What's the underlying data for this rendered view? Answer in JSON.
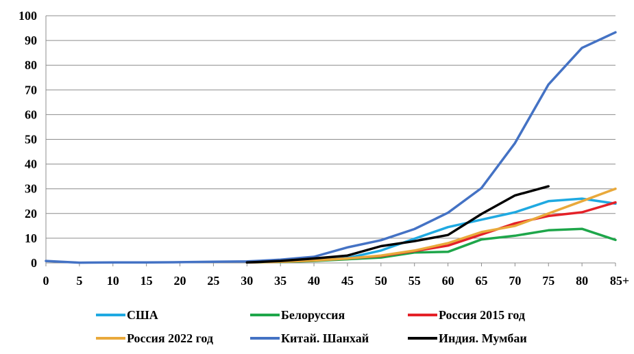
{
  "chart_data": {
    "type": "line",
    "categories": [
      "0",
      "5",
      "10",
      "15",
      "20",
      "25",
      "30",
      "35",
      "40",
      "45",
      "50",
      "55",
      "60",
      "65",
      "70",
      "75",
      "80",
      "85+"
    ],
    "y_ticks": [
      "0",
      "10",
      "20",
      "30",
      "40",
      "50",
      "60",
      "70",
      "80",
      "90",
      "100"
    ],
    "ylim": [
      0,
      100
    ],
    "grid": "horizontal",
    "legend_position": "bottom",
    "series": [
      {
        "name": "США",
        "color": "#1fa9e1",
        "values": [
          null,
          null,
          null,
          null,
          null,
          null,
          0.3,
          0.6,
          1.0,
          2.0,
          5.0,
          9.8,
          14.5,
          17.5,
          20.5,
          25.0,
          26.0,
          24.0
        ]
      },
      {
        "name": "Белоруссия",
        "color": "#1ea64a",
        "values": [
          null,
          null,
          null,
          null,
          null,
          null,
          0.2,
          0.4,
          0.8,
          1.5,
          2.2,
          4.2,
          4.5,
          9.5,
          11.0,
          13.2,
          13.8,
          9.3
        ]
      },
      {
        "name": "Россия 2015 год",
        "color": "#e42128",
        "values": [
          null,
          null,
          null,
          null,
          null,
          null,
          0.2,
          0.5,
          1.0,
          1.8,
          2.8,
          4.8,
          7.0,
          11.5,
          16.0,
          19.0,
          20.5,
          24.5
        ]
      },
      {
        "name": "Россия 2022 год",
        "color": "#e9a93b",
        "values": [
          null,
          null,
          null,
          null,
          null,
          null,
          0.2,
          0.5,
          1.0,
          1.8,
          3.0,
          5.0,
          8.0,
          12.5,
          15.0,
          20.0,
          25.0,
          30.0
        ]
      },
      {
        "name": "Китай. Шанхай",
        "color": "#4472c4",
        "values": [
          0.8,
          0.1,
          0.2,
          0.2,
          0.3,
          0.5,
          0.6,
          1.3,
          2.5,
          6.3,
          9.2,
          13.7,
          20.3,
          30.3,
          48.5,
          72.2,
          87.0,
          93.3
        ]
      },
      {
        "name": "Индия. Мумбаи",
        "color": "#000000",
        "values": [
          null,
          null,
          null,
          null,
          null,
          null,
          0.2,
          0.8,
          1.8,
          3.0,
          6.8,
          8.8,
          11.3,
          19.8,
          27.3,
          31.0,
          null,
          null
        ]
      }
    ]
  }
}
